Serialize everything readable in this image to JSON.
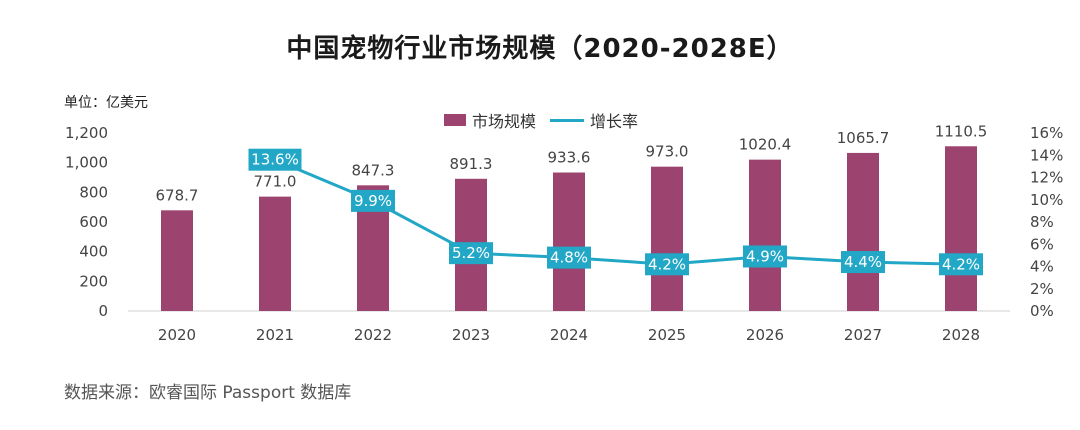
{
  "chart_data": {
    "type": "bar",
    "title": "中国宠物行业市场规模（2020-2028E）",
    "unit_label": "单位：亿美元",
    "categories": [
      "2020",
      "2021",
      "2022",
      "2023",
      "2024",
      "2025",
      "2026",
      "2027",
      "2028"
    ],
    "series": [
      {
        "name": "市场规模",
        "type": "bar",
        "axis": "left",
        "values": [
          678.7,
          771.0,
          847.3,
          891.3,
          933.6,
          973.0,
          1020.4,
          1065.7,
          1110.5
        ],
        "labels": [
          "678.7",
          "771.0",
          "847.3",
          "891.3",
          "933.6",
          "973.0",
          "1020.4",
          "1065.7",
          "1110.5"
        ],
        "color": "#9c4370"
      },
      {
        "name": "增长率",
        "type": "line",
        "axis": "right",
        "values": [
          null,
          13.6,
          9.9,
          5.2,
          4.8,
          4.2,
          4.9,
          4.4,
          4.2
        ],
        "labels": [
          "",
          "13.6%",
          "9.9%",
          "5.2%",
          "4.8%",
          "4.2%",
          "4.9%",
          "4.4%",
          "4.2%"
        ],
        "color": "#22a7c6"
      }
    ],
    "y_left": {
      "min": 0,
      "max": 1200,
      "ticks": [
        "0",
        "200",
        "400",
        "600",
        "800",
        "1,000",
        "1,200"
      ]
    },
    "y_right": {
      "min": 0,
      "max": 16,
      "ticks": [
        "0%",
        "2%",
        "4%",
        "6%",
        "8%",
        "10%",
        "12%",
        "14%",
        "16%"
      ]
    },
    "legend_position": "top-center",
    "grid": false
  },
  "source": "数据来源：欧睿国际 Passport 数据库"
}
